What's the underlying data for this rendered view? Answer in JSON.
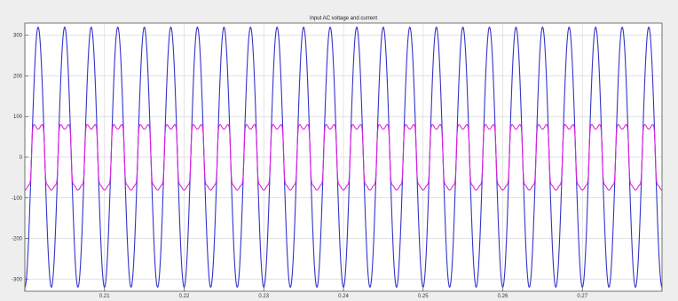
{
  "chart_data": {
    "type": "line",
    "title": "Input AC voltage and current",
    "xlabel": "",
    "ylabel": "",
    "xlim": [
      0.2,
      0.28
    ],
    "ylim": [
      -330,
      330
    ],
    "x_ticks": [
      0.2,
      0.21,
      0.22,
      0.23,
      0.24,
      0.25,
      0.26,
      0.27,
      0.28
    ],
    "x_tick_labels": [
      "",
      "0.21",
      "0.22",
      "0.23",
      "0.24",
      "0.25",
      "0.26",
      "0.27",
      ""
    ],
    "y_ticks": [
      -300,
      -200,
      -100,
      0,
      100,
      200,
      300
    ],
    "y_tick_labels": [
      "-300",
      "-200",
      "-100",
      "0",
      "100",
      "200",
      "300"
    ],
    "grid": true,
    "legend": "none",
    "series": [
      {
        "color": "#3333cc",
        "frequency_hz": 300,
        "amplitude": 320,
        "phase_deg": -90,
        "shape": "sine"
      },
      {
        "color": "#e020e0",
        "frequency_hz": 300,
        "amplitude": 75,
        "phase_deg": -90,
        "shape": "quasi-square"
      }
    ],
    "colors": {
      "axes_background": "#ffffff",
      "figure_background": "#eeeeee",
      "grid": "#d8d8d8"
    }
  }
}
